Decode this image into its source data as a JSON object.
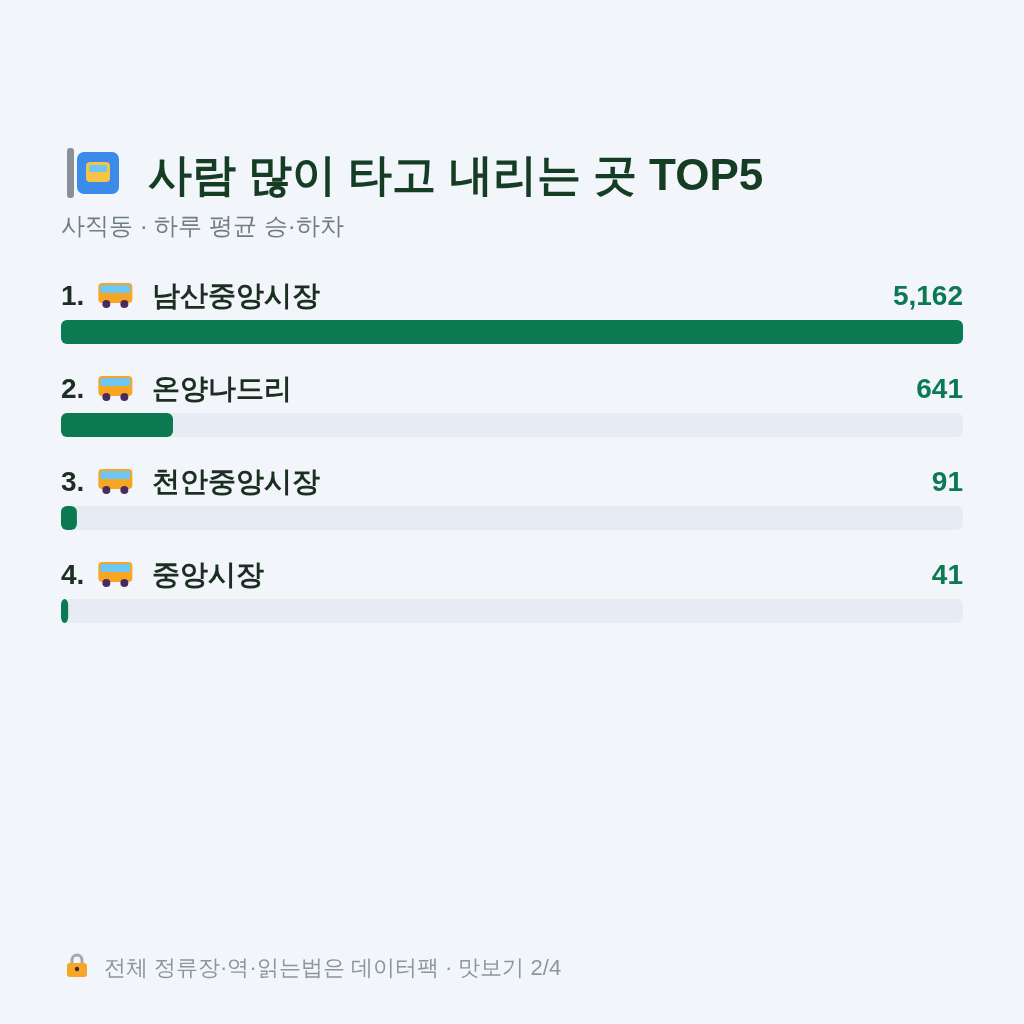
{
  "chart_data": {
    "type": "bar",
    "orientation": "horizontal",
    "title": "사람 많이 타고 내리는 곳 TOP5",
    "subtitle": "사직동 · 하루 평균 승·하차",
    "categories": [
      "1. 남산중앙시장",
      "2. 온양나드리",
      "3. 천안중앙시장",
      "4. 중앙시장"
    ],
    "values": [
      5162,
      641,
      91,
      41
    ],
    "value_labels": [
      "5,162",
      "641",
      "91",
      "41"
    ],
    "color": "#0b7a53",
    "annotations": [
      "전체 정류장·역·읽는법은 데이터팩 · 맛보기 2/4"
    ]
  }
}
